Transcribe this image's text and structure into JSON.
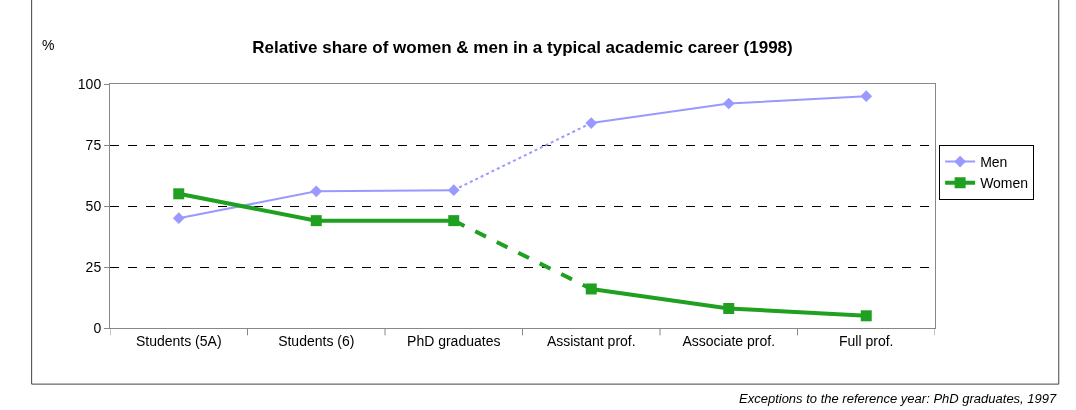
{
  "chart_data": {
    "type": "line",
    "title": "Relative share of women & men in a typical academic career (1998)",
    "ylabel": "%",
    "categories": [
      "Students (5A)",
      "Students (6)",
      "PhD graduates",
      "Assistant prof.",
      "Associate prof.",
      "Full prof."
    ],
    "series": [
      {
        "name": "Men",
        "color": "#9999ff",
        "values": [
          45,
          56,
          56.5,
          null,
          null,
          null
        ],
        "marker": "diamond",
        "line_style": "solid"
      },
      {
        "color": "#9999ff",
        "values": [
          null,
          null,
          56.5,
          84,
          null,
          null
        ],
        "line_style": "dotted"
      },
      {
        "color": "#9999ff",
        "values": [
          null,
          null,
          null,
          84,
          92,
          95
        ],
        "marker": "diamond",
        "line_style": "solid"
      },
      {
        "name": "Women",
        "color": "#20a020",
        "values": [
          55,
          44,
          44,
          null,
          null,
          null
        ],
        "marker": "square",
        "line_style": "solid"
      },
      {
        "color": "#20a020",
        "values": [
          null,
          null,
          44,
          16,
          null,
          null
        ],
        "line_style": "dashed"
      },
      {
        "color": "#20a020",
        "values": [
          null,
          null,
          null,
          16,
          8,
          5
        ],
        "marker": "square",
        "line_style": "solid"
      }
    ],
    "ylim": [
      0,
      100
    ],
    "yticks": [
      0,
      25,
      50,
      75,
      100
    ],
    "grid": "y",
    "legend": "right",
    "annotations": [
      "Exceptions to the reference year: PhD graduates, 1997"
    ]
  }
}
